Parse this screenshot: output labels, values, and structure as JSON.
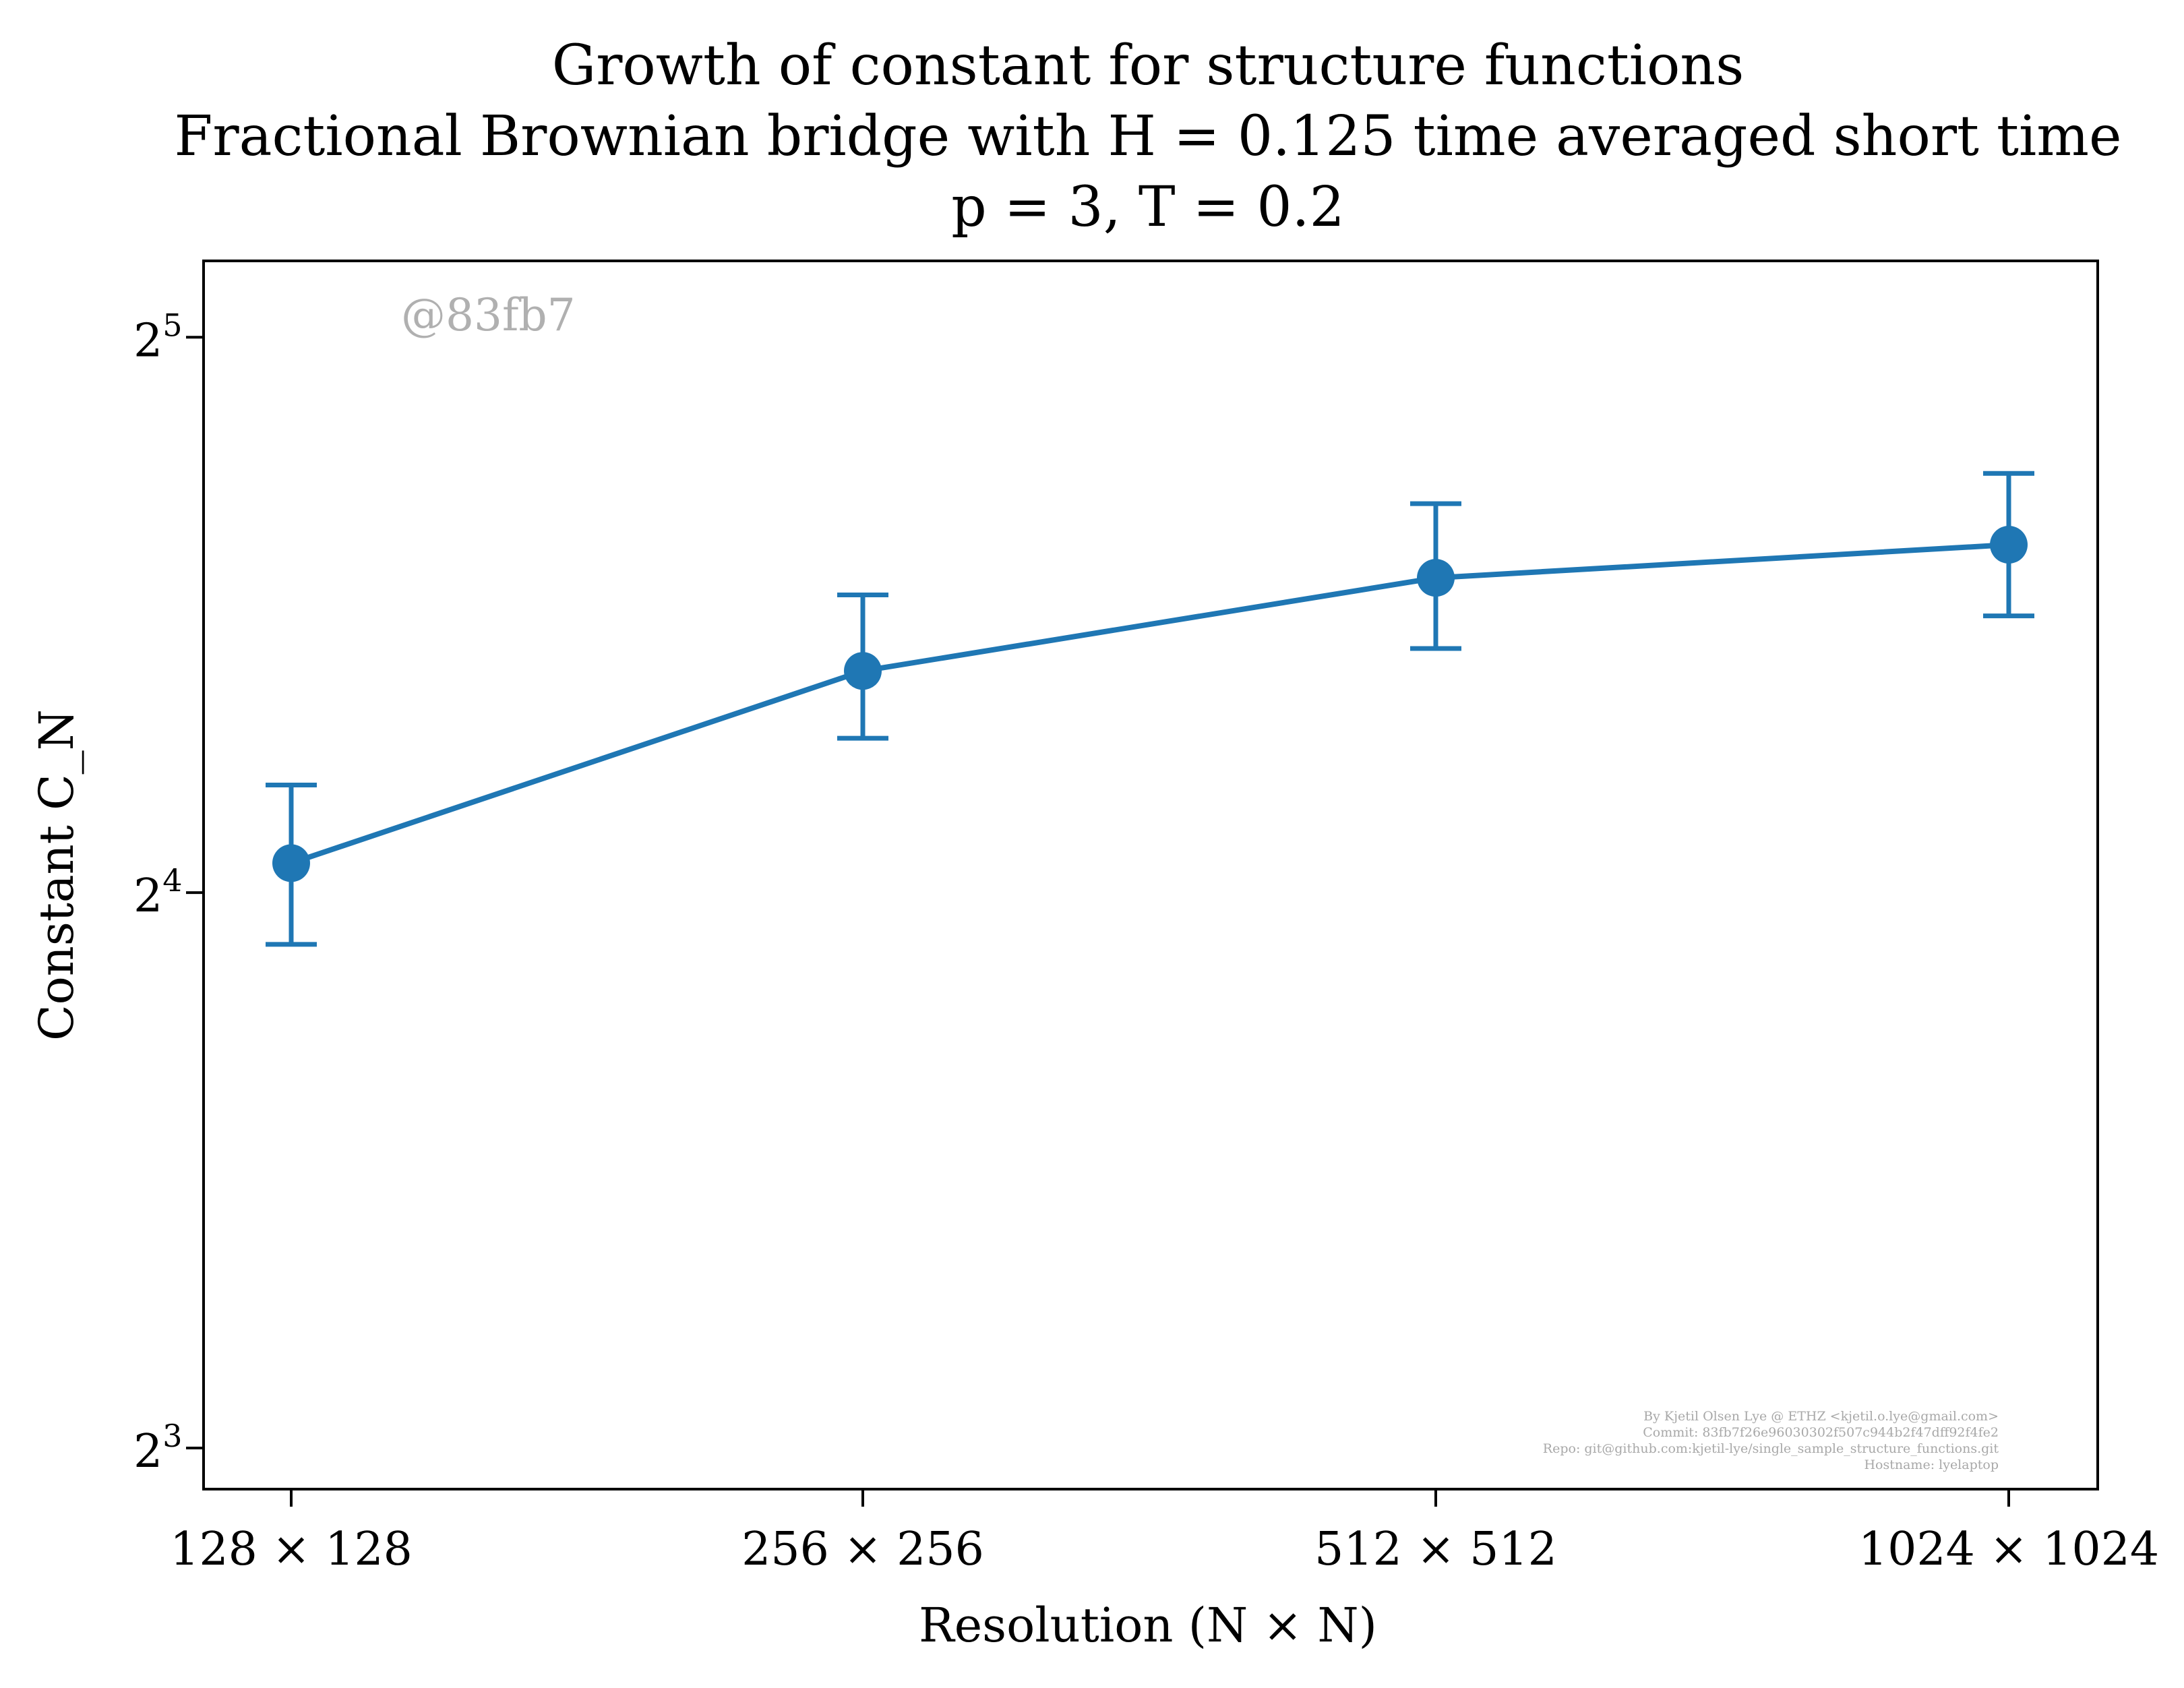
{
  "chart_data": {
    "type": "line",
    "title_lines": [
      "Growth of constant for structure functions",
      "Fractional Brownian bridge with H = 0.125 time averaged short time",
      "p = 3, T = 0.2"
    ],
    "xlabel": "Resolution (N × N)",
    "ylabel": "Constant C_N",
    "yscale": "log2",
    "ylim": [
      7.6,
      35.2
    ],
    "categories": [
      "128 × 128",
      "256 × 256",
      "512 × 512",
      "1024 × 1024"
    ],
    "y_ticks": [
      {
        "base": "2",
        "exp": "3",
        "value": 8
      },
      {
        "base": "2",
        "exp": "4",
        "value": 16
      },
      {
        "base": "2",
        "exp": "5",
        "value": 32
      }
    ],
    "series": [
      {
        "color": "#1f77b4",
        "values": [
          16.6,
          21.1,
          23.7,
          24.7
        ],
        "err_low": [
          15.0,
          19.4,
          21.7,
          22.6
        ],
        "err_high": [
          18.3,
          23.2,
          26.0,
          27.0
        ]
      }
    ],
    "grid": false,
    "legend": "none"
  },
  "watermark": "@83fb7",
  "footer_lines": [
    "By Kjetil Olsen Lye @ ETHZ <kjetil.o.lye@gmail.com>",
    "Commit: 83fb7f26e96030302f507c944b2f47dff92f4fe2",
    "Repo: git@github.com:kjetil-lye/single_sample_structure_functions.git",
    "Hostname: lyelaptop"
  ]
}
